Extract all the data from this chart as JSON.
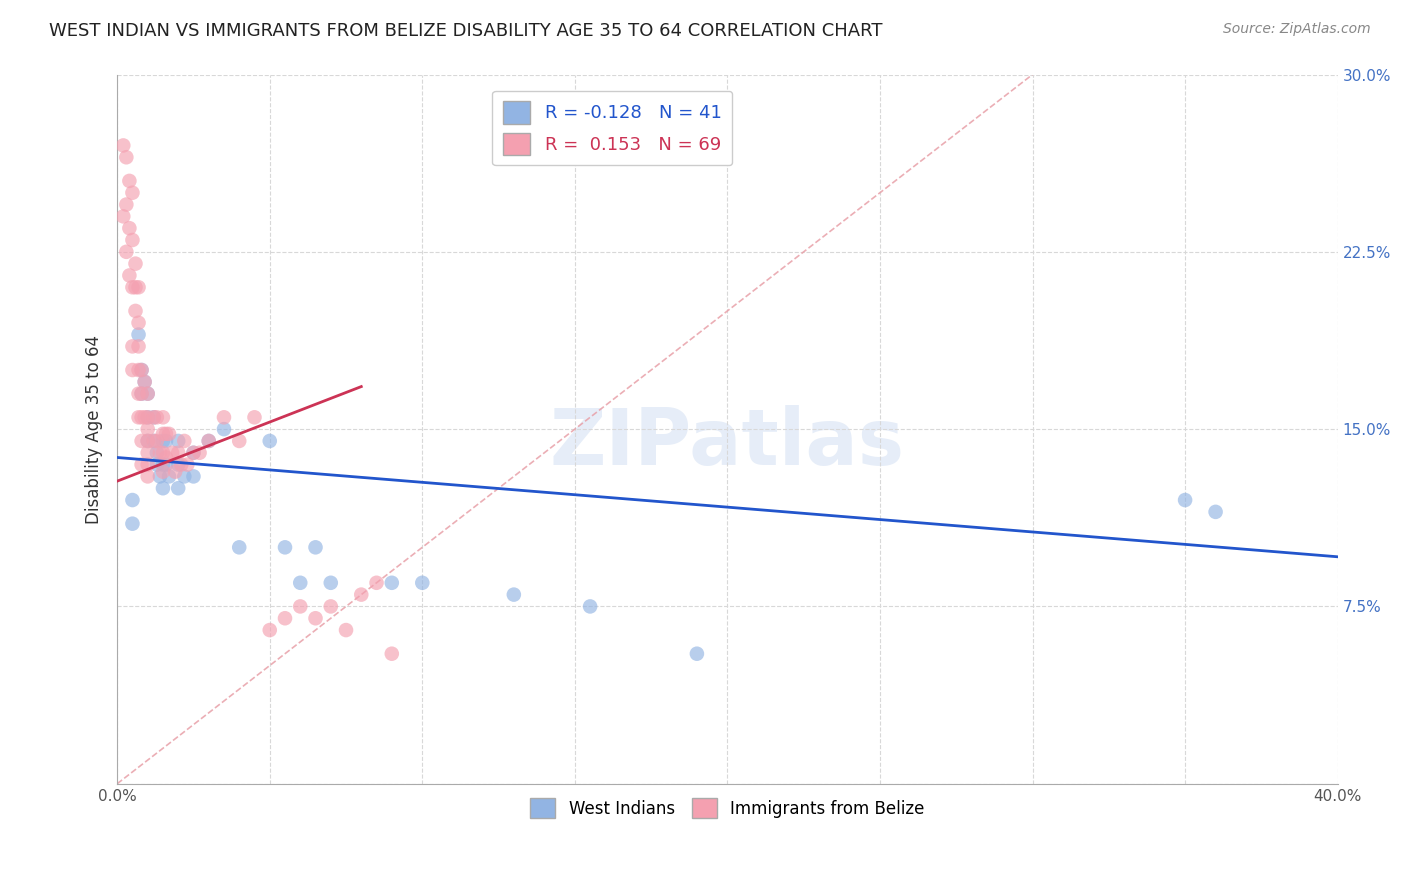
{
  "title": "WEST INDIAN VS IMMIGRANTS FROM BELIZE DISABILITY AGE 35 TO 64 CORRELATION CHART",
  "source": "Source: ZipAtlas.com",
  "ylabel": "Disability Age 35 to 64",
  "xlim": [
    0.0,
    0.4
  ],
  "ylim": [
    0.0,
    0.3
  ],
  "xticks": [
    0.0,
    0.05,
    0.1,
    0.15,
    0.2,
    0.25,
    0.3,
    0.35,
    0.4
  ],
  "yticks": [
    0.0,
    0.075,
    0.15,
    0.225,
    0.3
  ],
  "legend_r_blue": "-0.128",
  "legend_n_blue": "41",
  "legend_r_pink": "0.153",
  "legend_n_pink": "69",
  "blue_color": "#92b4e3",
  "pink_color": "#f4a0b0",
  "blue_line_color": "#2255cc",
  "pink_line_color": "#cc3355",
  "diagonal_color": "#e8a0a8",
  "watermark": "ZIPatlas",
  "blue_line_x0": 0.0,
  "blue_line_y0": 0.138,
  "blue_line_x1": 0.4,
  "blue_line_y1": 0.096,
  "pink_line_x0": 0.0,
  "pink_line_y0": 0.128,
  "pink_line_x1": 0.08,
  "pink_line_y1": 0.168,
  "blue_scatter_x": [
    0.005,
    0.005,
    0.007,
    0.008,
    0.008,
    0.009,
    0.01,
    0.01,
    0.01,
    0.012,
    0.012,
    0.013,
    0.013,
    0.014,
    0.015,
    0.015,
    0.015,
    0.016,
    0.016,
    0.017,
    0.02,
    0.02,
    0.02,
    0.022,
    0.025,
    0.025,
    0.03,
    0.035,
    0.04,
    0.05,
    0.055,
    0.06,
    0.065,
    0.07,
    0.09,
    0.1,
    0.13,
    0.155,
    0.19,
    0.35,
    0.36
  ],
  "blue_scatter_y": [
    0.12,
    0.11,
    0.19,
    0.175,
    0.165,
    0.17,
    0.165,
    0.155,
    0.145,
    0.155,
    0.145,
    0.14,
    0.135,
    0.13,
    0.145,
    0.135,
    0.125,
    0.145,
    0.135,
    0.13,
    0.145,
    0.135,
    0.125,
    0.13,
    0.14,
    0.13,
    0.145,
    0.15,
    0.1,
    0.145,
    0.1,
    0.085,
    0.1,
    0.085,
    0.085,
    0.085,
    0.08,
    0.075,
    0.055,
    0.12,
    0.115
  ],
  "pink_scatter_x": [
    0.002,
    0.002,
    0.003,
    0.003,
    0.003,
    0.004,
    0.004,
    0.004,
    0.005,
    0.005,
    0.005,
    0.005,
    0.005,
    0.006,
    0.006,
    0.006,
    0.007,
    0.007,
    0.007,
    0.007,
    0.007,
    0.007,
    0.008,
    0.008,
    0.008,
    0.008,
    0.008,
    0.009,
    0.009,
    0.01,
    0.01,
    0.01,
    0.01,
    0.01,
    0.01,
    0.01,
    0.012,
    0.012,
    0.013,
    0.013,
    0.014,
    0.015,
    0.015,
    0.015,
    0.015,
    0.016,
    0.016,
    0.017,
    0.018,
    0.019,
    0.02,
    0.021,
    0.022,
    0.023,
    0.025,
    0.027,
    0.03,
    0.035,
    0.04,
    0.045,
    0.05,
    0.055,
    0.06,
    0.065,
    0.07,
    0.075,
    0.08,
    0.085,
    0.09
  ],
  "pink_scatter_y": [
    0.27,
    0.24,
    0.265,
    0.245,
    0.225,
    0.255,
    0.235,
    0.215,
    0.25,
    0.23,
    0.21,
    0.185,
    0.175,
    0.22,
    0.21,
    0.2,
    0.21,
    0.195,
    0.185,
    0.175,
    0.165,
    0.155,
    0.175,
    0.165,
    0.155,
    0.145,
    0.135,
    0.17,
    0.155,
    0.165,
    0.155,
    0.15,
    0.145,
    0.14,
    0.135,
    0.13,
    0.155,
    0.145,
    0.155,
    0.145,
    0.14,
    0.155,
    0.148,
    0.14,
    0.132,
    0.148,
    0.138,
    0.148,
    0.14,
    0.132,
    0.14,
    0.135,
    0.145,
    0.135,
    0.14,
    0.14,
    0.145,
    0.155,
    0.145,
    0.155,
    0.065,
    0.07,
    0.075,
    0.07,
    0.075,
    0.065,
    0.08,
    0.085,
    0.055
  ]
}
